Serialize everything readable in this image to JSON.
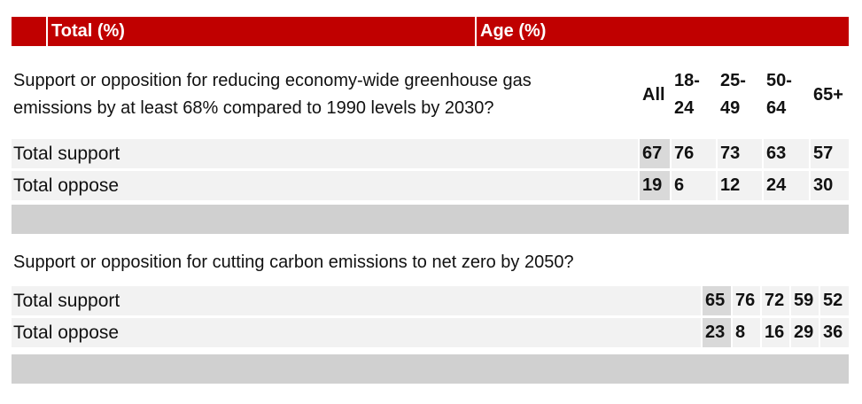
{
  "header": {
    "total_label": "Total (%)",
    "age_label": "Age (%)"
  },
  "q1": {
    "question_line1": "Support or opposition for reducing economy-wide greenhouse gas",
    "question_line2": "emissions by at least 68% compared to 1990 levels by 2030?",
    "columns": {
      "all": "All",
      "c1a": "18-",
      "c1b": "24",
      "c2a": "25-",
      "c2b": "49",
      "c3a": "50-",
      "c3b": "64",
      "c4": "65+"
    },
    "rows": [
      {
        "label": "Total support",
        "all": "67",
        "a18_24": "76",
        "a25_49": "73",
        "a50_64": "63",
        "a65": "57"
      },
      {
        "label": "Total oppose",
        "all": "19",
        "a18_24": "6",
        "a25_49": "12",
        "a50_64": "24",
        "a65": "30"
      }
    ]
  },
  "q2": {
    "question": "Support or opposition for cutting carbon emissions to net zero by 2050?",
    "rows": [
      {
        "label": "Total support",
        "all": "65",
        "a18_24": "76",
        "a25_49": "72",
        "a50_64": "59",
        "a65": "52"
      },
      {
        "label": "Total oppose",
        "all": "23",
        "a18_24": "8",
        "a25_49": "16",
        "a50_64": "29",
        "a65": "36"
      }
    ]
  },
  "colors": {
    "header_red": "#c00000",
    "row_bg": "#f2f2f2",
    "all_col_bg": "#d9d9d9",
    "spacer_bg": "#d0d0d0"
  }
}
